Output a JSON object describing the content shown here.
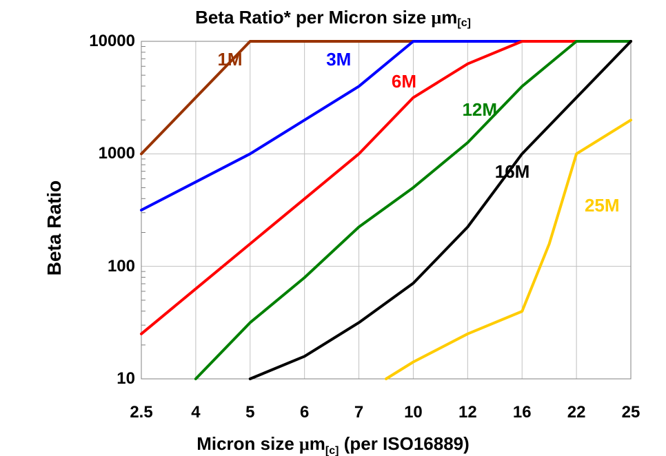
{
  "chart": {
    "type": "line-log",
    "title_pre": "Beta Ratio* per Micron size ",
    "title_mu": "μ",
    "title_m": "m",
    "title_sub": "[c]",
    "ylabel": "Beta Ratio",
    "xlabel_pre": "Micron size ",
    "xlabel_mu": "μ",
    "xlabel_m": "m",
    "xlabel_sub": "[c]",
    "xlabel_post": " (per ISO16889)",
    "background_color": "#ffffff",
    "grid_color": "#c0c0c0",
    "border_color": "#808080",
    "line_width": 4,
    "x_categories": [
      "2.5",
      "4",
      "5",
      "6",
      "7",
      "10",
      "12",
      "16",
      "22",
      "25"
    ],
    "y_ticks_log10": [
      1,
      2,
      3,
      4
    ],
    "y_tick_labels": [
      "10",
      "100",
      "1000",
      "10000"
    ],
    "ylim_log10": [
      1,
      4
    ],
    "series": [
      {
        "name": "1M",
        "color": "#993300",
        "label_x": 1.4,
        "label_y": 3.85,
        "points": [
          [
            0,
            3
          ],
          [
            1,
            3.5
          ],
          [
            2,
            4
          ],
          [
            9,
            4
          ]
        ]
      },
      {
        "name": "3M",
        "color": "#0000ff",
        "label_x": 3.4,
        "label_y": 3.85,
        "points": [
          [
            0,
            2.5
          ],
          [
            1,
            2.75
          ],
          [
            2,
            3
          ],
          [
            3,
            3.3
          ],
          [
            4,
            3.6
          ],
          [
            5,
            4
          ],
          [
            9,
            4
          ]
        ]
      },
      {
        "name": "6M",
        "color": "#ff0000",
        "label_x": 4.6,
        "label_y": 3.65,
        "points": [
          [
            0,
            1.4
          ],
          [
            1,
            1.8
          ],
          [
            2,
            2.2
          ],
          [
            3,
            2.6
          ],
          [
            4,
            3
          ],
          [
            5,
            3.5
          ],
          [
            6,
            3.8
          ],
          [
            7,
            4
          ],
          [
            9,
            4
          ]
        ]
      },
      {
        "name": "12M",
        "color": "#008000",
        "label_x": 5.9,
        "label_y": 3.4,
        "points": [
          [
            1,
            1
          ],
          [
            2,
            1.5
          ],
          [
            3,
            1.9
          ],
          [
            4,
            2.35
          ],
          [
            5,
            2.7
          ],
          [
            6,
            3.1
          ],
          [
            7,
            3.6
          ],
          [
            8,
            4
          ],
          [
            9,
            4
          ]
        ]
      },
      {
        "name": "16M",
        "color": "#000000",
        "label_x": 6.5,
        "label_y": 2.85,
        "points": [
          [
            2,
            1
          ],
          [
            3,
            1.2
          ],
          [
            4,
            1.5
          ],
          [
            5,
            1.85
          ],
          [
            6,
            2.35
          ],
          [
            7,
            3
          ],
          [
            8,
            3.5
          ],
          [
            9,
            4
          ]
        ]
      },
      {
        "name": "25M",
        "color": "#ffcc00",
        "label_x": 8.15,
        "label_y": 2.55,
        "points": [
          [
            4.5,
            1
          ],
          [
            5,
            1.15
          ],
          [
            6,
            1.4
          ],
          [
            7,
            1.6
          ],
          [
            7.5,
            2.2
          ],
          [
            8,
            3
          ],
          [
            9,
            3.3
          ]
        ]
      }
    ]
  }
}
